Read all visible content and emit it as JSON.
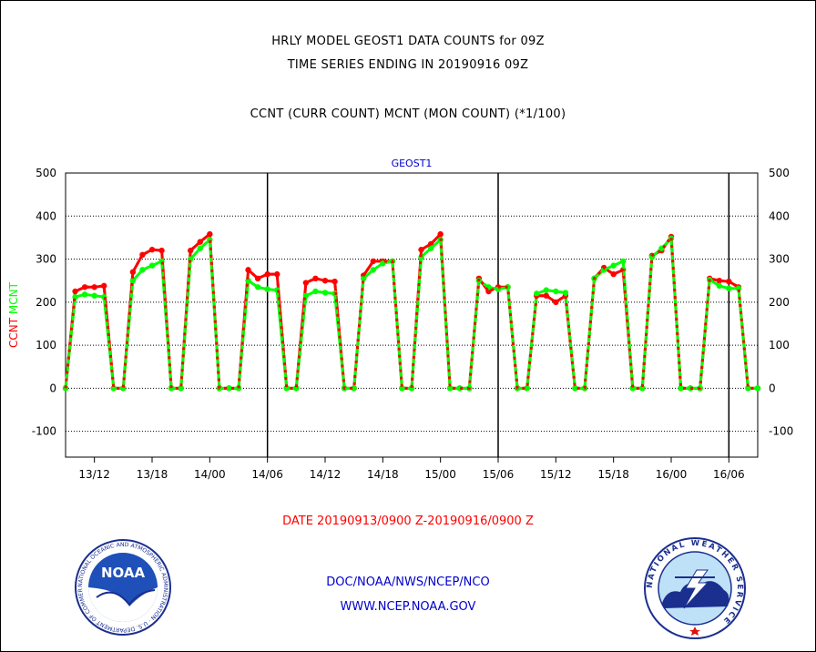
{
  "header": {
    "line1": "HRLY MODEL GEOST1 DATA COUNTS for 09Z",
    "line2": "TIME SERIES ENDING IN 20190916 09Z",
    "line3": "CCNT (CURR COUNT) MCNT (MON COUNT) (*1/100)"
  },
  "footer": {
    "date_range": "DATE 20190913/0900 Z-20190916/0900 Z",
    "org": "DOC/NOAA/NWS/NCEP/NCO",
    "url": "WWW.NCEP.NOAA.GOV"
  },
  "logos": {
    "noaa": {
      "name": "NOAA",
      "ring_text": "NATIONAL OCEANIC AND ATMOSPHERIC ADMINISTRATION · U.S. DEPARTMENT OF COMMERCE"
    },
    "nws": {
      "ring_text": "NATIONAL WEATHER SERVICE"
    }
  },
  "colors": {
    "ccnt": "#ff0000",
    "mcnt": "#00ff00",
    "title_blue": "#0000cc",
    "date_red": "#ff0000"
  },
  "chart_data": {
    "type": "line",
    "title": "GEOST1",
    "ylabel": "CCNT  MCNT",
    "ylim": [
      -160,
      500
    ],
    "yticks": [
      -100,
      0,
      100,
      200,
      300,
      400,
      500
    ],
    "day_dividers": [
      "14/06",
      "15/06",
      "16/06"
    ],
    "grid": true,
    "xtick_labels": [
      "13/12",
      "13/18",
      "14/00",
      "14/06",
      "14/12",
      "14/18",
      "15/00",
      "15/06",
      "15/12",
      "15/18",
      "16/00",
      "16/06"
    ],
    "x": [
      "13/09",
      "13/10",
      "13/11",
      "13/12",
      "13/13",
      "13/14",
      "13/15",
      "13/16",
      "13/17",
      "13/18",
      "13/19",
      "13/20",
      "13/21",
      "13/22",
      "13/23",
      "14/00",
      "14/01",
      "14/02",
      "14/03",
      "14/04",
      "14/05",
      "14/06",
      "14/07",
      "14/08",
      "14/09",
      "14/10",
      "14/11",
      "14/12",
      "14/13",
      "14/14",
      "14/15",
      "14/16",
      "14/17",
      "14/18",
      "14/19",
      "14/20",
      "14/21",
      "14/22",
      "14/23",
      "15/00",
      "15/01",
      "15/02",
      "15/03",
      "15/04",
      "15/05",
      "15/06",
      "15/07",
      "15/08",
      "15/09",
      "15/10",
      "15/11",
      "15/12",
      "15/13",
      "15/14",
      "15/15",
      "15/16",
      "15/17",
      "15/18",
      "15/19",
      "15/20",
      "15/21",
      "15/22",
      "15/23",
      "16/00",
      "16/01",
      "16/02",
      "16/03",
      "16/04",
      "16/05",
      "16/06",
      "16/07",
      "16/08",
      "16/09"
    ],
    "series": [
      {
        "name": "CCNT",
        "values": [
          0,
          225,
          235,
          235,
          238,
          0,
          0,
          270,
          310,
          322,
          320,
          0,
          0,
          320,
          340,
          358,
          0,
          0,
          0,
          275,
          255,
          265,
          265,
          0,
          0,
          245,
          255,
          250,
          248,
          0,
          0,
          262,
          295,
          295,
          295,
          0,
          0,
          322,
          335,
          358,
          0,
          0,
          0,
          255,
          225,
          235,
          235,
          0,
          0,
          215,
          215,
          200,
          215,
          0,
          0,
          255,
          280,
          265,
          275,
          0,
          0,
          308,
          320,
          352,
          0,
          0,
          0,
          255,
          250,
          248,
          235,
          0,
          0
        ]
      },
      {
        "name": "MCNT",
        "values": [
          0,
          212,
          218,
          215,
          212,
          0,
          0,
          250,
          275,
          285,
          295,
          0,
          0,
          300,
          325,
          345,
          0,
          0,
          0,
          250,
          235,
          230,
          228,
          0,
          0,
          215,
          225,
          222,
          220,
          0,
          0,
          255,
          275,
          290,
          295,
          0,
          0,
          305,
          325,
          345,
          0,
          0,
          0,
          250,
          235,
          230,
          235,
          0,
          0,
          220,
          228,
          225,
          222,
          0,
          0,
          255,
          275,
          285,
          295,
          0,
          0,
          305,
          325,
          348,
          0,
          0,
          0,
          252,
          238,
          232,
          232,
          0,
          0
        ]
      }
    ]
  }
}
